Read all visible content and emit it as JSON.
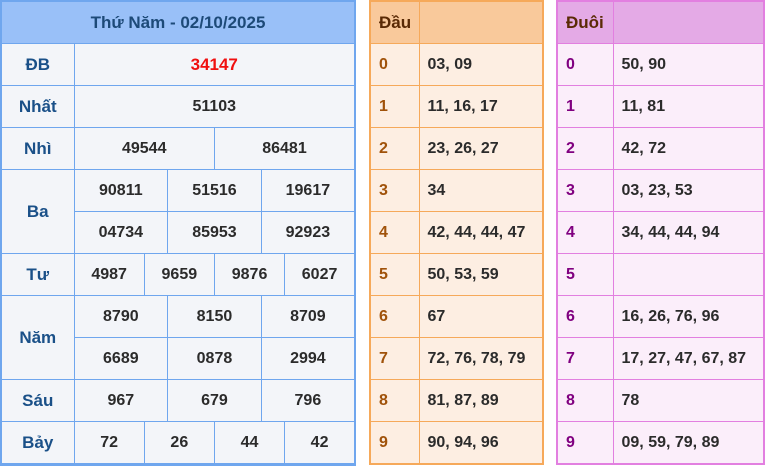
{
  "results": {
    "title": "Thứ Năm - 02/10/2025",
    "prizes": [
      {
        "label": "ĐB",
        "rows": [
          [
            "34147"
          ]
        ]
      },
      {
        "label": "Nhất",
        "rows": [
          [
            "51103"
          ]
        ]
      },
      {
        "label": "Nhì",
        "rows": [
          [
            "49544",
            "86481"
          ]
        ]
      },
      {
        "label": "Ba",
        "rows": [
          [
            "90811",
            "51516",
            "19617"
          ],
          [
            "04734",
            "85953",
            "92923"
          ]
        ]
      },
      {
        "label": "Tư",
        "rows": [
          [
            "4987",
            "9659",
            "9876",
            "6027"
          ]
        ]
      },
      {
        "label": "Năm",
        "rows": [
          [
            "8790",
            "8150",
            "8709"
          ],
          [
            "6689",
            "0878",
            "2994"
          ]
        ]
      },
      {
        "label": "Sáu",
        "rows": [
          [
            "967",
            "679",
            "796"
          ]
        ]
      },
      {
        "label": "Bảy",
        "rows": [
          [
            "72",
            "26",
            "44",
            "42"
          ]
        ]
      }
    ]
  },
  "dau": {
    "header": "Đầu",
    "header2": "",
    "rows": [
      [
        "0",
        "03, 09"
      ],
      [
        "1",
        "11, 16, 17"
      ],
      [
        "2",
        "23, 26, 27"
      ],
      [
        "3",
        "34"
      ],
      [
        "4",
        "42, 44, 44, 47"
      ],
      [
        "5",
        "50, 53, 59"
      ],
      [
        "6",
        "67"
      ],
      [
        "7",
        "72, 76, 78, 79"
      ],
      [
        "8",
        "81, 87, 89"
      ],
      [
        "9",
        "90, 94, 96"
      ]
    ]
  },
  "duoi": {
    "header": "Đuôi",
    "header2": "",
    "rows": [
      [
        "0",
        "50, 90"
      ],
      [
        "1",
        "11, 81"
      ],
      [
        "2",
        "42, 72"
      ],
      [
        "3",
        "03, 23, 53"
      ],
      [
        "4",
        "34, 44, 44, 94"
      ],
      [
        "5",
        ""
      ],
      [
        "6",
        "16, 26, 76, 96"
      ],
      [
        "7",
        "17, 27, 47, 67, 87"
      ],
      [
        "8",
        "78"
      ],
      [
        "9",
        "09, 59, 79, 89"
      ]
    ]
  },
  "colors": {
    "special_prize": "#f01010",
    "results_header": "#99c0f8",
    "dau_header": "#f9c99b",
    "duoi_header": "#e4aae6"
  }
}
